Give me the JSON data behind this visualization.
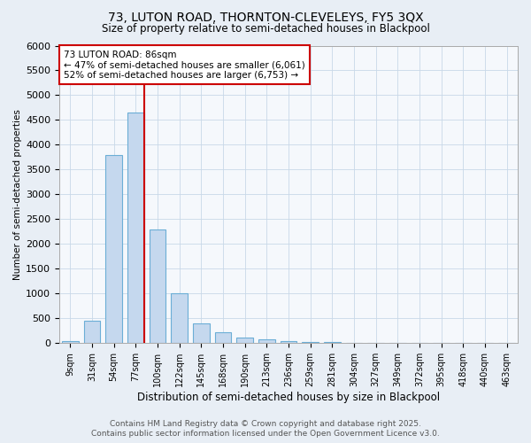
{
  "title1": "73, LUTON ROAD, THORNTON-CLEVELEYS, FY5 3QX",
  "title2": "Size of property relative to semi-detached houses in Blackpool",
  "xlabel": "Distribution of semi-detached houses by size in Blackpool",
  "ylabel": "Number of semi-detached properties",
  "bar_labels": [
    "9sqm",
    "31sqm",
    "54sqm",
    "77sqm",
    "100sqm",
    "122sqm",
    "145sqm",
    "168sqm",
    "190sqm",
    "213sqm",
    "236sqm",
    "259sqm",
    "281sqm",
    "304sqm",
    "327sqm",
    "349sqm",
    "372sqm",
    "395sqm",
    "418sqm",
    "440sqm",
    "463sqm"
  ],
  "bar_values": [
    50,
    450,
    3800,
    4650,
    2300,
    1000,
    400,
    220,
    110,
    75,
    50,
    30,
    20,
    0,
    0,
    0,
    0,
    0,
    0,
    0,
    0
  ],
  "bar_color": "#c5d8ee",
  "bar_edge_color": "#6baed6",
  "property_bin_index": 3,
  "annotation_title": "73 LUTON ROAD: 86sqm",
  "annotation_line1": "← 47% of semi-detached houses are smaller (6,061)",
  "annotation_line2": "52% of semi-detached houses are larger (6,753) →",
  "annotation_box_color": "#ffffff",
  "annotation_box_edge": "#cc0000",
  "red_line_color": "#cc0000",
  "ylim": [
    0,
    6000
  ],
  "yticks": [
    0,
    500,
    1000,
    1500,
    2000,
    2500,
    3000,
    3500,
    4000,
    4500,
    5000,
    5500,
    6000
  ],
  "footer1": "Contains HM Land Registry data © Crown copyright and database right 2025.",
  "footer2": "Contains public sector information licensed under the Open Government Licence v3.0.",
  "bg_color": "#e8eef5",
  "plot_bg_color": "#f5f8fc",
  "grid_color": "#c8d8e8"
}
